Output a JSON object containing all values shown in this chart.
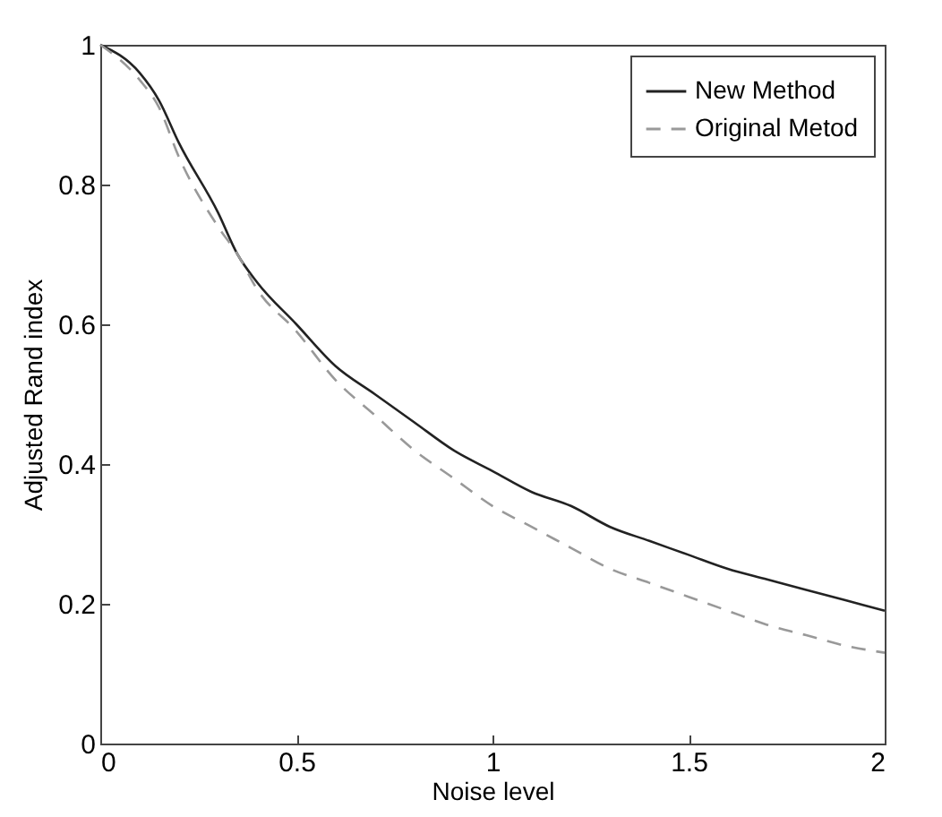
{
  "chart_data": {
    "type": "line",
    "xlabel": "Noise level",
    "ylabel": "Adjusted Rand index",
    "xlim": [
      0,
      2
    ],
    "xticks": [
      0,
      0.5,
      1,
      1.5,
      2
    ],
    "ylim": [
      0,
      1
    ],
    "yticks": [
      0,
      0.2,
      0.4,
      0.6,
      0.8,
      1
    ],
    "x": [
      0,
      0.1,
      0.15,
      0.2,
      0.3,
      0.35,
      0.4,
      0.5,
      0.6,
      0.7,
      0.8,
      0.9,
      1.0,
      1.1,
      1.2,
      1.3,
      1.4,
      1.5,
      1.6,
      1.7,
      1.8,
      1.9,
      2.0
    ],
    "series": [
      {
        "name": "New Method",
        "color": "#222222",
        "line_style": "solid",
        "values": [
          1,
          0.96,
          0.92,
          0.86,
          0.76,
          0.7,
          0.66,
          0.6,
          0.54,
          0.5,
          0.46,
          0.42,
          0.39,
          0.36,
          0.34,
          0.31,
          0.29,
          0.27,
          0.25,
          0.235,
          0.22,
          0.205,
          0.19
        ]
      },
      {
        "name": "Original Metod",
        "color": "#999999",
        "line_style": "dashed",
        "values": [
          1,
          0.95,
          0.91,
          0.84,
          0.74,
          0.7,
          0.65,
          0.59,
          0.52,
          0.47,
          0.42,
          0.38,
          0.34,
          0.31,
          0.28,
          0.25,
          0.23,
          0.21,
          0.19,
          0.17,
          0.155,
          0.14,
          0.13
        ]
      }
    ],
    "grid": false,
    "legend": "top right",
    "marker": "none"
  }
}
